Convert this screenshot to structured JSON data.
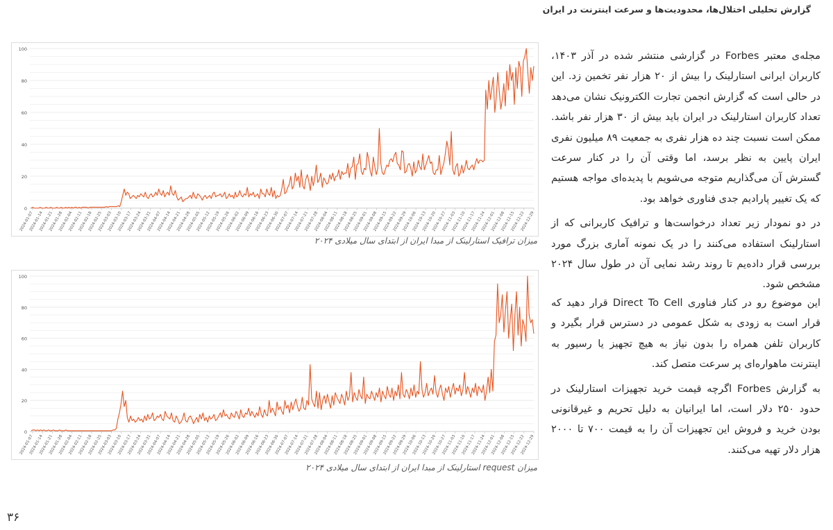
{
  "header": {
    "title": "گزارش تحلیلی اختلال‌ها، محدودیت‌ها و سرعت اینترنت در ایران"
  },
  "paragraphs": {
    "p1": "مجله‌ی معتبر Forbes در گزارشی منتشر شده در آذر ۱۴۰۳، کاربران ایرانی استارلینک را بیش از ۲۰ هزار نفر تخمین زد. این در حالی است که گزارش انجمن تجارت الکترونیک نشان می‌دهد تعداد کاربران استارلینک در ایران باید بیش از ۳۰ هزار نفر باشد. ممکن است نسبت چند ده هزار نفری به جمعیت ۸۹ میلیون نفری ایران پایین به نظر برسد، اما وقتی آن را در کنار سرعت گسترش آن می‌گذاریم متوجه می‌شویم با پدیده‌ای مواجه هستیم که یک تغییر پارادیم جدی فناوری خواهد بود.",
    "p2": "در دو نمودار زیر تعداد درخواست‌ها و ترافیک کاربرانی که از استارلینک استفاده می‌کنند را در یک نمونه آماری بزرگ مورد بررسی قرار داده‌یم تا روند رشد نمایی آن در طول سال ۲۰۲۴ مشخص شود.",
    "p3": "این موضوع رو در کنار فناوری Direct To Cell قرار دهید که قرار است به زودی به شکل عمومی در دسترس قرار بگیرد و کاربران تلفن همراه را بدون نیاز به هیچ تجهیز یا رسیور به اینترنت ماهواره‌ای پر سرعت متصل کند.",
    "p4": "به گزارش Forbes اگرچه قیمت خرید تجهیزات استارلینک در حدود ۲۵۰ دلار است، اما ایرانیان به دلیل تحریم و غیرقانونی بودن خرید و فروش این تجهیزات آن را به قیمت ۷۰۰ تا ۲۰۰۰ هزار دلار تهیه می‌کنند."
  },
  "captions": {
    "c1": "میزان ترافیک استارلینک از مبدا ایران از ابتدای سال میلادی ۲۰۲۴",
    "c2": "میزان request استارلینک از مبدا ایران از ابتدای سال میلادی ۲۰۲۴"
  },
  "page_number": "۳۶",
  "colors": {
    "line": "#e8531e",
    "grid": "#e6e6e6",
    "axis": "#bdbdbd",
    "text": "#555555"
  },
  "chart_data": [
    {
      "type": "line",
      "title": "",
      "xlabel": "",
      "ylabel": "",
      "ylim": [
        0,
        100
      ],
      "yticks": [
        0,
        20,
        40,
        60,
        80,
        100
      ],
      "grid": true,
      "legend": "none",
      "x_ticks": [
        "2024-01-07",
        "2024-01-14",
        "2024-01-21",
        "2024-01-28",
        "2024-02-04",
        "2024-02-11",
        "2024-02-18",
        "2024-02-25",
        "2024-03-03",
        "2024-03-10",
        "2024-03-17",
        "2024-03-24",
        "2024-03-31",
        "2024-04-07",
        "2024-04-14",
        "2024-04-21",
        "2024-04-28",
        "2024-05-05",
        "2024-05-12",
        "2024-05-19",
        "2024-05-26",
        "2024-06-02",
        "2024-06-09",
        "2024-06-16",
        "2024-06-23",
        "2024-06-30",
        "2024-07-07",
        "2024-07-14",
        "2024-07-21",
        "2024-07-28",
        "2024-08-04",
        "2024-08-11",
        "2024-08-18",
        "2024-08-25",
        "2024-09-01",
        "2024-09-08",
        "2024-09-15",
        "2024-09-22",
        "2024-09-29",
        "2024-10-06",
        "2024-10-13",
        "2024-10-20",
        "2024-10-27",
        "2024-11-03",
        "2024-11-10",
        "2024-11-17",
        "2024-11-24",
        "2024-12-01",
        "2024-12-08",
        "2024-12-15",
        "2024-12-22",
        "2024-12-29"
      ],
      "series": [
        {
          "values": [
            0,
            0.5,
            0,
            0,
            0,
            0,
            0.5,
            0,
            0,
            0,
            0.5,
            0,
            0,
            0.5,
            0,
            0,
            0,
            0.5,
            0,
            0,
            0.5,
            0,
            0,
            0.5,
            0,
            0.5,
            0,
            0.5,
            0,
            0.5,
            0.5,
            0,
            0.5,
            0,
            0.5,
            0.5,
            0.5,
            0.5,
            0,
            0.5,
            0.5,
            0.5,
            0.5,
            0.5,
            0.5,
            0.5,
            0.5,
            0.5,
            0.5,
            0.5,
            1,
            0.5,
            1,
            1,
            1,
            1,
            1,
            1,
            1.5,
            1,
            4,
            8,
            12,
            8,
            10,
            9,
            6,
            7,
            8,
            7,
            6,
            8,
            7,
            9,
            8,
            7,
            10,
            7,
            6,
            8,
            9,
            7,
            8,
            10,
            8,
            12,
            9,
            8,
            11,
            7,
            9,
            10,
            8,
            14,
            9,
            8,
            11,
            7,
            5,
            6,
            7,
            4,
            5,
            6,
            6,
            7,
            8,
            6,
            10,
            7,
            6,
            9,
            8,
            7,
            5,
            7,
            8,
            6,
            7,
            8,
            6,
            9,
            10,
            7,
            8,
            8,
            9,
            7,
            8,
            10,
            6,
            7,
            9,
            7,
            8,
            6,
            10,
            7,
            8,
            11,
            8,
            7,
            9,
            8,
            13,
            7,
            9,
            8,
            10,
            7,
            8,
            9,
            6,
            12,
            9,
            9,
            7,
            12,
            9,
            8,
            13,
            7,
            11,
            6,
            8,
            7,
            8,
            12,
            18,
            9,
            10,
            13,
            15,
            20,
            12,
            14,
            22,
            17,
            20,
            13,
            24,
            14,
            12,
            18,
            21,
            17,
            11,
            20,
            14,
            19,
            27,
            16,
            18,
            22,
            13,
            19,
            17,
            15,
            16,
            21,
            18,
            22,
            17,
            20,
            20,
            24,
            18,
            23,
            21,
            22,
            22,
            28,
            19,
            25,
            26,
            32,
            18,
            27,
            28,
            34,
            23,
            21,
            25,
            24,
            35,
            30,
            23,
            20,
            32,
            26,
            21,
            25,
            50,
            28,
            22,
            21,
            24,
            27,
            26,
            30,
            31,
            29,
            33,
            35,
            28,
            27,
            24,
            36,
            35,
            22,
            23,
            27,
            28,
            25,
            20,
            29,
            22,
            24,
            30,
            26,
            24,
            34,
            24,
            27,
            30,
            33,
            28,
            29,
            22,
            21,
            24,
            24,
            33,
            21,
            25,
            28,
            34,
            42,
            37,
            27,
            48,
            24,
            21,
            26,
            28,
            20,
            22,
            27,
            22,
            25,
            30,
            25,
            24,
            26,
            27,
            24,
            28,
            31,
            28,
            30,
            30,
            29,
            30,
            74,
            62,
            80,
            68,
            75,
            82,
            60,
            70,
            85,
            73,
            62,
            68,
            78,
            64,
            86,
            74,
            90,
            80,
            85,
            65,
            88,
            75,
            92,
            88,
            70,
            92,
            95,
            100,
            85,
            72,
            88,
            80,
            89
          ]
        }
      ]
    },
    {
      "type": "line",
      "title": "",
      "xlabel": "",
      "ylabel": "",
      "ylim": [
        0,
        100
      ],
      "yticks": [
        0,
        20,
        40,
        60,
        80,
        100
      ],
      "grid": true,
      "legend": "none",
      "x_ticks": [
        "2024-01-07",
        "2024-01-14",
        "2024-01-21",
        "2024-01-28",
        "2024-02-04",
        "2024-02-11",
        "2024-02-18",
        "2024-02-25",
        "2024-03-03",
        "2024-03-10",
        "2024-03-17",
        "2024-03-24",
        "2024-03-31",
        "2024-04-07",
        "2024-04-14",
        "2024-04-21",
        "2024-04-28",
        "2024-05-05",
        "2024-05-12",
        "2024-05-19",
        "2024-05-26",
        "2024-06-02",
        "2024-06-09",
        "2024-06-16",
        "2024-06-23",
        "2024-06-30",
        "2024-07-07",
        "2024-07-14",
        "2024-07-21",
        "2024-07-28",
        "2024-08-04",
        "2024-08-11",
        "2024-08-18",
        "2024-08-25",
        "2024-09-01",
        "2024-09-08",
        "2024-09-15",
        "2024-09-22",
        "2024-09-29",
        "2024-10-06",
        "2024-10-13",
        "2024-10-20",
        "2024-10-27",
        "2024-11-03",
        "2024-11-10",
        "2024-11-17",
        "2024-11-24",
        "2024-12-01",
        "2024-12-08",
        "2024-12-15",
        "2024-12-22",
        "2024-12-29"
      ],
      "series": [
        {
          "values": [
            0.5,
            1,
            1,
            0.5,
            1,
            0.5,
            1,
            0.5,
            1,
            0.5,
            0.5,
            1,
            0.5,
            0.5,
            1,
            0.5,
            0.5,
            0.5,
            1,
            0.5,
            0.5,
            0.5,
            1,
            0.5,
            0.5,
            0.5,
            0.5,
            0.5,
            0.5,
            0.5,
            0.5,
            0.5,
            0.5,
            0.5,
            0.5,
            0.5,
            0.5,
            0.5,
            0.5,
            0.5,
            0.5,
            0.5,
            0.5,
            0.5,
            0.5,
            0.5,
            0.5,
            0.5,
            0.5,
            0.5,
            0.5,
            0.5,
            1,
            1,
            2,
            8,
            12,
            18,
            26,
            16,
            20,
            9,
            6,
            10,
            7,
            8,
            6,
            7,
            9,
            7,
            8,
            6,
            10,
            7,
            11,
            8,
            9,
            12,
            7,
            8,
            10,
            9,
            11,
            8,
            7,
            13,
            10,
            9,
            8,
            12,
            7,
            6,
            10,
            8,
            5,
            6,
            8,
            12,
            7,
            6,
            9,
            10,
            8,
            5,
            7,
            9,
            6,
            11,
            8,
            12,
            7,
            9,
            6,
            10,
            8,
            9,
            11,
            7,
            8,
            10,
            12,
            9,
            14,
            10,
            11,
            9,
            8,
            12,
            10,
            9,
            13,
            11,
            8,
            14,
            10,
            9,
            12,
            11,
            15,
            10,
            13,
            11,
            9,
            12,
            10,
            16,
            11,
            9,
            14,
            11,
            10,
            20,
            12,
            15,
            13,
            10,
            19,
            14,
            16,
            13,
            11,
            20,
            15,
            17,
            12,
            19,
            14,
            18,
            21,
            16,
            13,
            15,
            22,
            15,
            14,
            20,
            17,
            43,
            21,
            18,
            16,
            26,
            15,
            25,
            14,
            20,
            23,
            18,
            24,
            19,
            15,
            23,
            17,
            25,
            22,
            20,
            18,
            24,
            21,
            17,
            26,
            20,
            23,
            38,
            19,
            25,
            22,
            20,
            27,
            23,
            21,
            35,
            18,
            24,
            22,
            21,
            26,
            23,
            20,
            25,
            22,
            28,
            19,
            26,
            23,
            21,
            29,
            24,
            22,
            28,
            20,
            26,
            23,
            30,
            21,
            38,
            24,
            22,
            27,
            25,
            21,
            28,
            23,
            30,
            22,
            26,
            24,
            45,
            27,
            22,
            25,
            31,
            23,
            26,
            28,
            24,
            36,
            25,
            22,
            27,
            30,
            24,
            20,
            28,
            25,
            29,
            22,
            27,
            31,
            24,
            28,
            26,
            30,
            23,
            27,
            38,
            24,
            29,
            26,
            22,
            28,
            25,
            31,
            23,
            29,
            27,
            25,
            30,
            20,
            26,
            35,
            25,
            40,
            26,
            58,
            62,
            95,
            70,
            75,
            88,
            64,
            78,
            90,
            60,
            72,
            82,
            52,
            75,
            90,
            62,
            80,
            55,
            72,
            68,
            58,
            100,
            75,
            70,
            72,
            63
          ]
        }
      ]
    }
  ]
}
